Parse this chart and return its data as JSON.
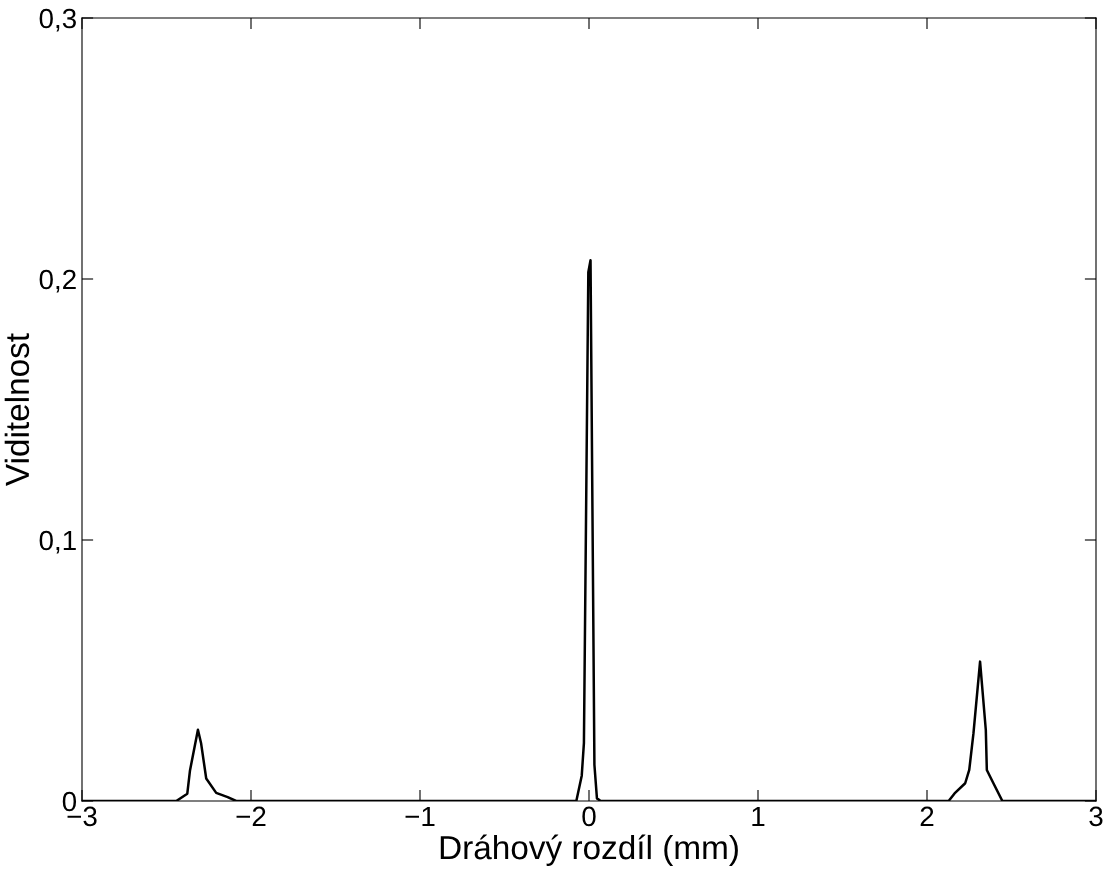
{
  "chart_data": {
    "type": "line",
    "xlabel": "Dráhový rozdíl (mm)",
    "ylabel": "Viditelnost",
    "xlim": [
      -3,
      3
    ],
    "ylim": [
      0,
      0.3
    ],
    "xticks": [
      {
        "value": -3,
        "label": "−3"
      },
      {
        "value": -2,
        "label": "−2"
      },
      {
        "value": -1,
        "label": "−1"
      },
      0,
      1,
      2,
      3
    ],
    "yticks": [
      0,
      {
        "value": 0.1,
        "label": "0,1"
      },
      {
        "value": 0.2,
        "label": "0,2"
      },
      {
        "value": 0.3,
        "label": "0,3"
      }
    ],
    "grid": false,
    "legend": false,
    "marker": "none",
    "line_style": "solid",
    "series": [
      {
        "color": "#000000",
        "x": [
          -3,
          -2.442,
          -2.377,
          -2.361,
          -2.314,
          -2.295,
          -2.265,
          -2.206,
          -2.138,
          -2.088,
          -0.075,
          -0.043,
          -0.03,
          -0.004,
          0.009,
          0.032,
          0.047,
          0.069,
          2.128,
          2.163,
          2.226,
          2.25,
          2.275,
          2.314,
          2.348,
          2.354,
          2.393,
          2.446,
          3
        ],
        "values": [
          0,
          0,
          0.0028,
          0.0117,
          0.0273,
          0.022,
          0.0086,
          0.0031,
          0.0015,
          0,
          0,
          0.0097,
          0.0223,
          0.2026,
          0.2072,
          0.0139,
          0.001,
          0,
          0,
          0.0029,
          0.0068,
          0.0119,
          0.026,
          0.0534,
          0.0272,
          0.0119,
          0.0068,
          0,
          0
        ]
      }
    ]
  }
}
